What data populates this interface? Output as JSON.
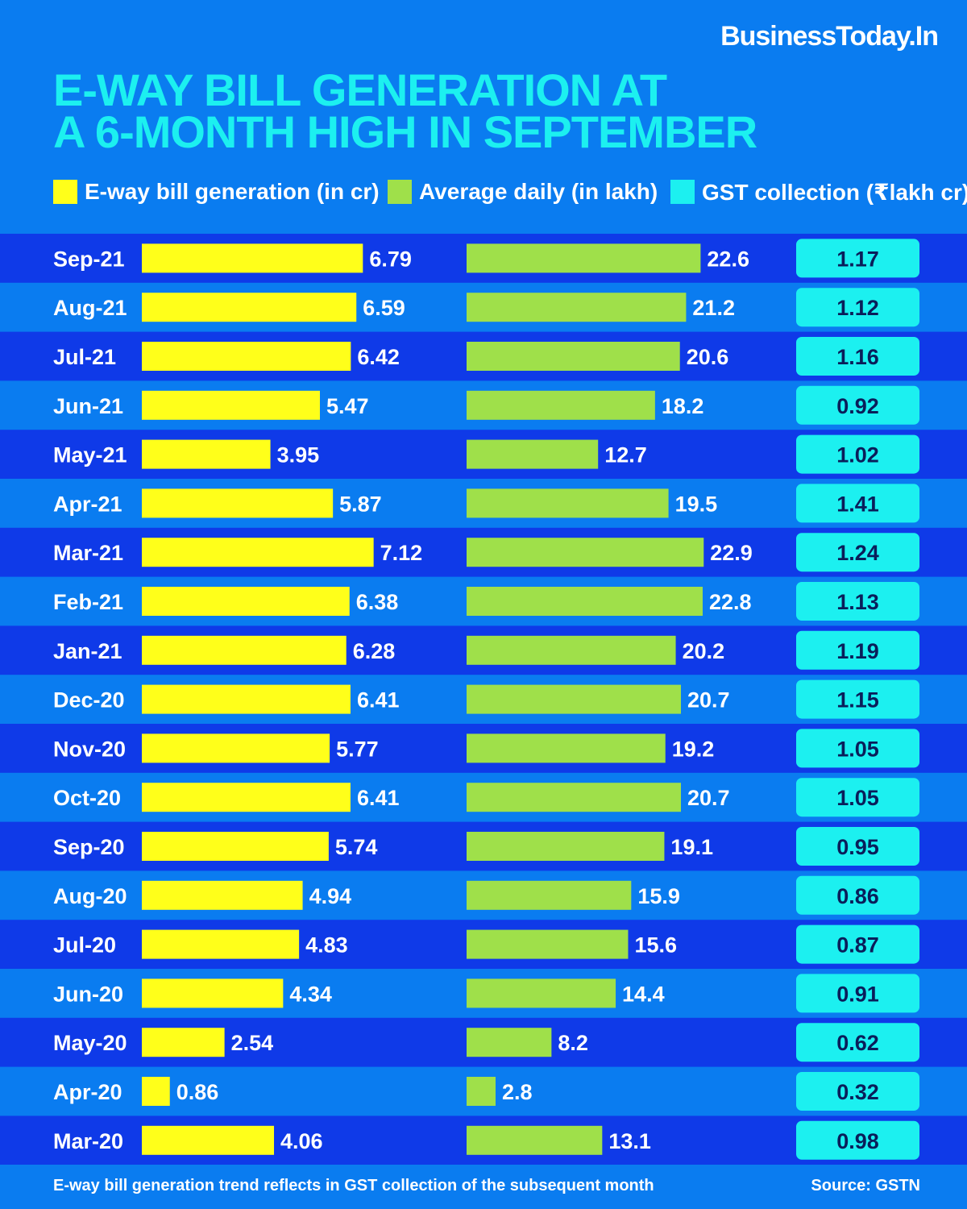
{
  "brand": "BusinessToday.In",
  "title_lines": [
    "E-WAY BILL GENERATION AT",
    "A 6-MONTH HIGH IN SEPTEMBER"
  ],
  "legend": [
    {
      "label": "E-way bill generation (in cr)",
      "color": "#ffff1a"
    },
    {
      "label": "Average daily (in lakh)",
      "color": "#9fe04a"
    },
    {
      "label": "GST collection (₹lakh cr)",
      "color": "#1cf0f0"
    }
  ],
  "colors": {
    "background": "#0a7cf0",
    "row_dark": "#0f3ae8",
    "row_light": "#0a7cf0",
    "title": "#1cf0f0",
    "yellow_bar": "#ffff1a",
    "green_bar": "#9fe04a",
    "gst_box": "#1cf0f0",
    "gst_text": "#0a1e5a"
  },
  "chart_data": {
    "type": "bar",
    "orientation": "horizontal",
    "categories": [
      "Sep-21",
      "Aug-21",
      "Jul-21",
      "Jun-21",
      "May-21",
      "Apr-21",
      "Mar-21",
      "Feb-21",
      "Jan-21",
      "Dec-20",
      "Nov-20",
      "Oct-20",
      "Sep-20",
      "Aug-20",
      "Jul-20",
      "Jun-20",
      "May-20",
      "Apr-20",
      "Mar-20"
    ],
    "series": [
      {
        "name": "E-way bill generation (in cr)",
        "values": [
          "6.79",
          "6.59",
          "6.42",
          "5.47",
          "3.95",
          "5.87",
          "7.12",
          "6.38",
          "6.28",
          "6.41",
          "5.77",
          "6.41",
          "5.74",
          "4.94",
          "4.83",
          "4.34",
          "2.54",
          "0.86",
          "4.06"
        ]
      },
      {
        "name": "Average daily (in lakh)",
        "values": [
          "22.6",
          "21.2",
          "20.6",
          "18.2",
          "12.7",
          "19.5",
          "22.9",
          "22.8",
          "20.2",
          "20.7",
          "19.2",
          "20.7",
          "19.1",
          "15.9",
          "15.6",
          "14.4",
          "8.2",
          "2.8",
          "13.1"
        ]
      },
      {
        "name": "GST collection (₹lakh cr)",
        "values": [
          "1.17",
          "1.12",
          "1.16",
          "0.92",
          "1.02",
          "1.41",
          "1.24",
          "1.13",
          "1.19",
          "1.15",
          "1.05",
          "1.05",
          "0.95",
          "0.86",
          "0.87",
          "0.91",
          "0.62",
          "0.32",
          "0.98"
        ]
      }
    ]
  },
  "footer": {
    "note": "E-way bill generation trend reflects in GST collection of the subsequent month",
    "source": "Source: GSTN"
  }
}
